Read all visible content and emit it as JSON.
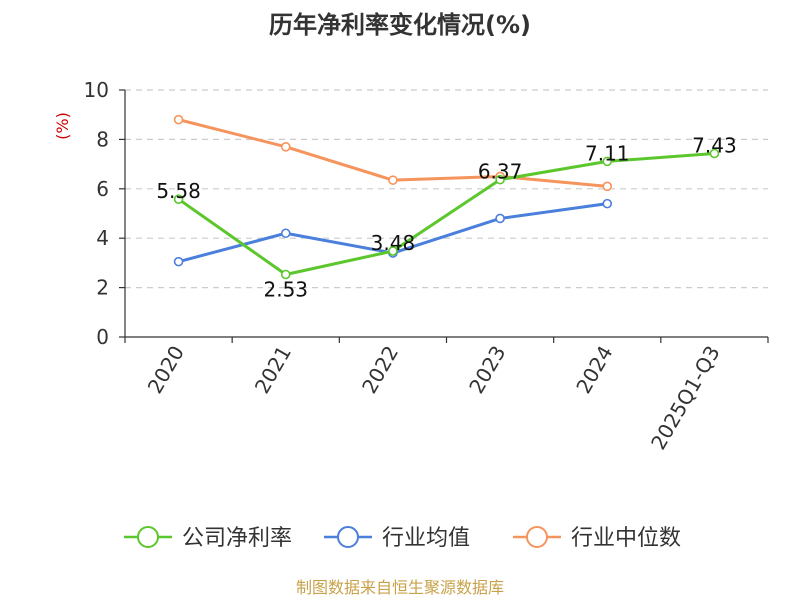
{
  "chart_data": {
    "type": "line",
    "title": "历年净利率变化情况(%)",
    "ylabel": "(%)",
    "xlabel": "",
    "categories": [
      "2020",
      "2021",
      "2022",
      "2023",
      "2024",
      "2025Q1-Q3"
    ],
    "ylim": [
      0,
      10
    ],
    "yticks": [
      0,
      2,
      4,
      6,
      8,
      10
    ],
    "grid": true,
    "legend_position": "bottom",
    "series": [
      {
        "name": "公司净利率",
        "color": "#5cc72d",
        "values": [
          5.58,
          2.53,
          3.48,
          6.37,
          7.11,
          7.43
        ],
        "labels": [
          "5.58",
          "2.53",
          "3.48",
          "6.37",
          "7.11",
          "7.43"
        ]
      },
      {
        "name": "行业均值",
        "color": "#4a7fdb",
        "values": [
          3.05,
          4.2,
          3.4,
          4.8,
          5.4,
          null
        ]
      },
      {
        "name": "行业中位数",
        "color": "#f5945c",
        "values": [
          8.8,
          7.7,
          6.35,
          6.5,
          6.1,
          null
        ]
      }
    ]
  },
  "source": "制图数据来自恒生聚源数据库",
  "colors": {
    "axis": "#333333",
    "grid": "#cccccc",
    "unit": "#cc0000",
    "source": "#c8a24a"
  }
}
